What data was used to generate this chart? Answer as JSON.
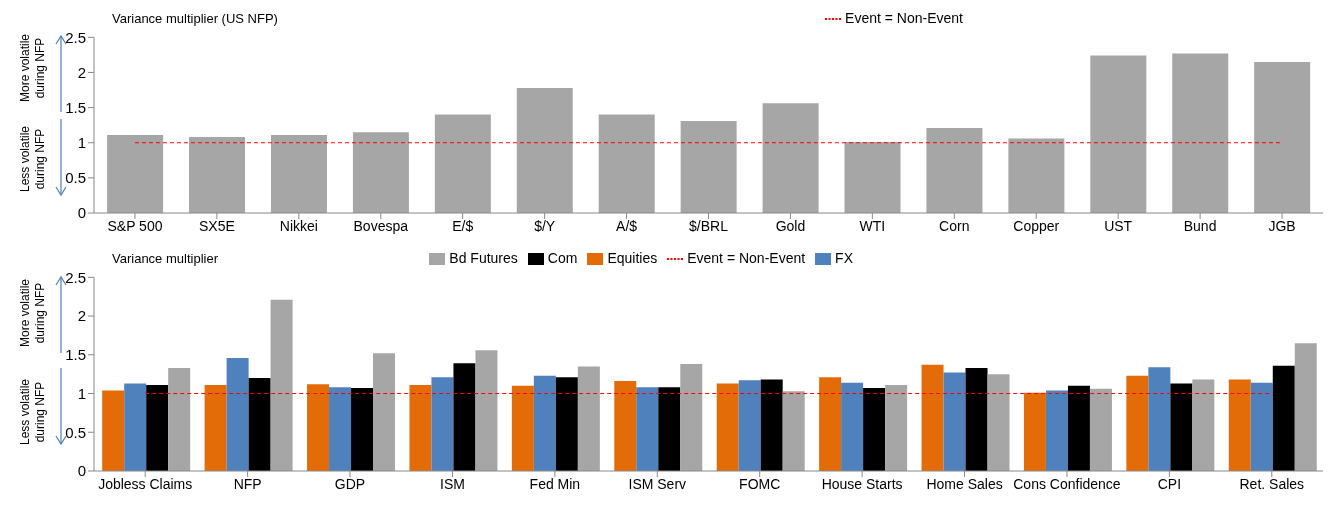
{
  "chart_data": [
    {
      "type": "bar",
      "title": "Variance multiplier (US NFP)",
      "categories": [
        "S&P 500",
        "SX5E",
        "Nikkei",
        "Bovespa",
        "E/$",
        "$/Y",
        "A/$",
        "$/BRL",
        "Gold",
        "WTI",
        "Corn",
        "Copper",
        "UST",
        "Bund",
        "JGB"
      ],
      "series": [
        {
          "color": "#a6a6a6",
          "values": [
            1.11,
            1.08,
            1.11,
            1.15,
            1.4,
            1.78,
            1.4,
            1.31,
            1.56,
            1.01,
            1.21,
            1.06,
            2.24,
            2.27,
            2.15
          ]
        },
        {
          "name": "Event = Non-Event",
          "type": "line",
          "color": "#ff0000",
          "line_style": "dashed",
          "marker": "none",
          "values": [
            1,
            1,
            1,
            1,
            1,
            1,
            1,
            1,
            1,
            1,
            1,
            1,
            1,
            1,
            1
          ]
        }
      ],
      "ylim": [
        0,
        2.5
      ],
      "yticks": [
        0,
        0.5,
        1,
        1.5,
        2,
        2.5
      ],
      "grid": false,
      "legend": "top",
      "annotations": [
        "More volatile during NFP",
        "Less volatile during NFP"
      ]
    },
    {
      "type": "bar",
      "title": "Variance multiplier",
      "categories": [
        "Jobless Claims",
        "NFP",
        "GDP",
        "ISM",
        "Fed Min",
        "ISM Serv",
        "FOMC",
        "House Starts",
        "Home Sales",
        "Cons Confidence",
        "CPI",
        "Ret. Sales"
      ],
      "series": [
        {
          "name": "Equities",
          "color": "#e36c09",
          "values": [
            1.04,
            1.11,
            1.12,
            1.11,
            1.1,
            1.16,
            1.13,
            1.21,
            1.37,
            1.01,
            1.23,
            1.18
          ]
        },
        {
          "name": "FX",
          "color": "#4f81bd",
          "values": [
            1.13,
            1.46,
            1.08,
            1.21,
            1.23,
            1.08,
            1.17,
            1.14,
            1.27,
            1.04,
            1.34,
            1.14
          ]
        },
        {
          "name": "Com",
          "color": "#000000",
          "values": [
            1.11,
            1.2,
            1.07,
            1.39,
            1.21,
            1.08,
            1.18,
            1.07,
            1.33,
            1.1,
            1.13,
            1.36
          ]
        },
        {
          "name": "Bd Futures",
          "color": "#a6a6a6",
          "values": [
            1.33,
            2.21,
            1.52,
            1.56,
            1.35,
            1.38,
            1.03,
            1.11,
            1.25,
            1.06,
            1.18,
            1.65
          ]
        },
        {
          "name": "Event = Non-Event",
          "type": "line",
          "color": "#ff0000",
          "line_style": "dashed",
          "marker": "none",
          "values": [
            1,
            1,
            1,
            1,
            1,
            1,
            1,
            1,
            1,
            1,
            1,
            1
          ]
        }
      ],
      "ylim": [
        0,
        2.5
      ],
      "yticks": [
        0,
        0.5,
        1,
        1.5,
        2,
        2.5
      ],
      "grid": false,
      "legend": "top",
      "annotations": [
        "More volatile during NFP",
        "Less volatile during NFP"
      ]
    }
  ]
}
